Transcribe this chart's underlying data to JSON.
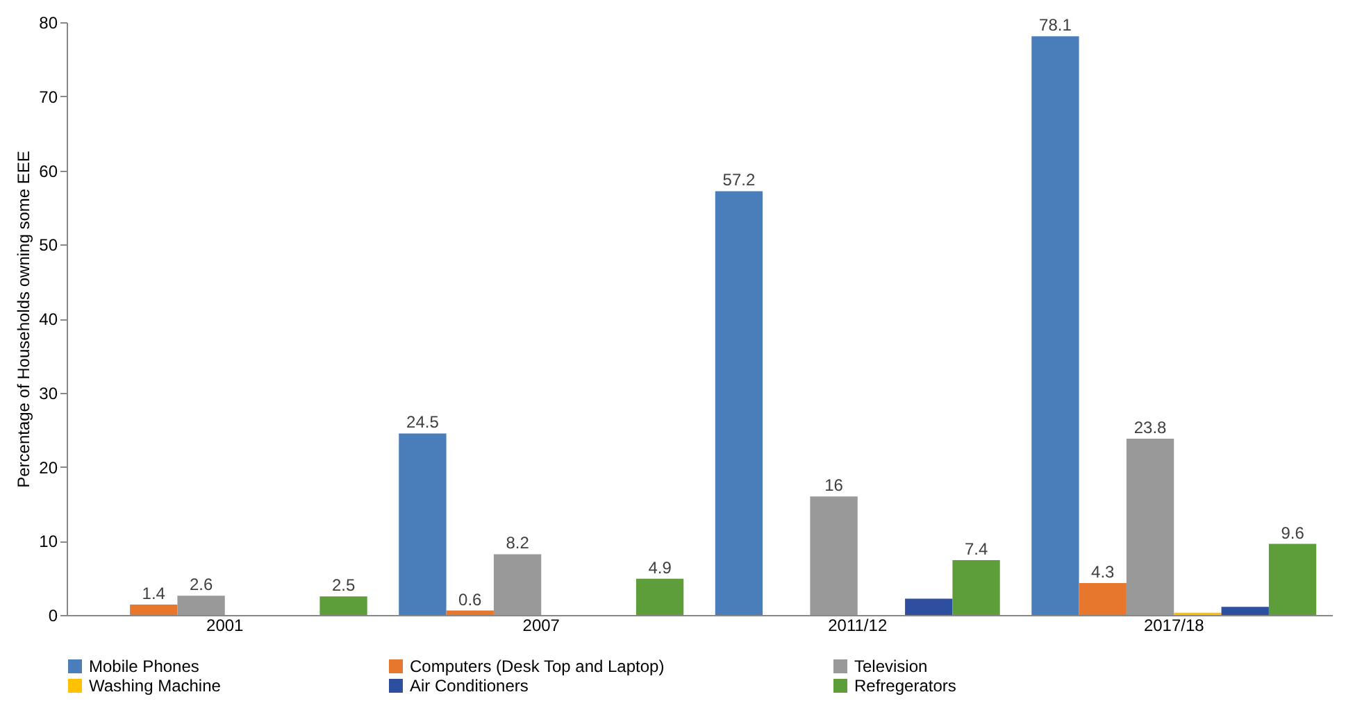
{
  "chart_data": {
    "type": "bar",
    "ylabel": "Percentage of Households owning some EEE",
    "categories": [
      "2001",
      "2007",
      "2011/12",
      "2017/18"
    ],
    "series": [
      {
        "name": "Mobile Phones",
        "color": "#4a7ebb",
        "values": [
          null,
          24.5,
          57.2,
          78.1
        ],
        "value_labels": [
          null,
          "24.5",
          "57.2",
          "78.1"
        ]
      },
      {
        "name": "Computers (Desk Top and Laptop)",
        "color": "#e8772e",
        "values": [
          1.4,
          0.6,
          null,
          4.3
        ],
        "value_labels": [
          "1.4",
          "0.6",
          null,
          "4.3"
        ]
      },
      {
        "name": "Television",
        "color": "#999999",
        "values": [
          2.6,
          8.2,
          16,
          23.8
        ],
        "value_labels": [
          "2.6",
          "8.2",
          "16",
          "23.8"
        ]
      },
      {
        "name": "Washing Machine",
        "color": "#ffc000",
        "values": [
          null,
          null,
          null,
          0.3
        ],
        "value_labels": [
          null,
          null,
          null,
          null
        ]
      },
      {
        "name": "Air Conditioners",
        "color": "#2e4fa0",
        "values": [
          null,
          null,
          2.2,
          1.1
        ],
        "value_labels": [
          null,
          null,
          null,
          null
        ]
      },
      {
        "name": "Refregerators",
        "color": "#5e9e3a",
        "values": [
          2.5,
          4.9,
          7.4,
          9.6
        ],
        "value_labels": [
          "2.5",
          "4.9",
          "7.4",
          "9.6"
        ]
      }
    ],
    "ylim": [
      0,
      80
    ],
    "yticks": [
      0,
      10,
      20,
      30,
      40,
      50,
      60,
      70,
      80
    ],
    "grid": false,
    "legend": "bottom"
  }
}
